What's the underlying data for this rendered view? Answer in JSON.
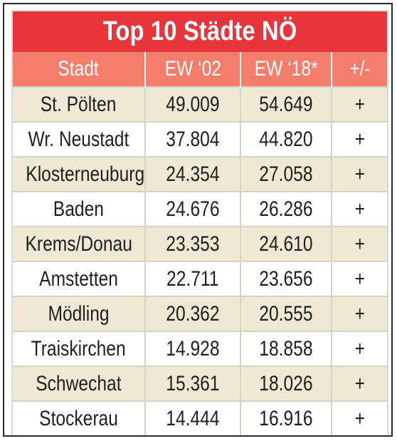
{
  "title": "Top 10 Städte NÖ",
  "columns": [
    "Stadt",
    "EW ‘02",
    "EW ‘18*",
    "+/-"
  ],
  "rows": [
    [
      "St. Pölten",
      "49.009",
      "54.649",
      "+"
    ],
    [
      "Wr. Neustadt",
      "37.804",
      "44.820",
      "+"
    ],
    [
      "Klosterneuburg",
      "24.354",
      "27.058",
      "+"
    ],
    [
      "Baden",
      "24.676",
      "26.286",
      "+"
    ],
    [
      "Krems/Donau",
      "23.353",
      "24.610",
      "+"
    ],
    [
      "Amstetten",
      "22.711",
      "23.656",
      "+"
    ],
    [
      "Mödling",
      "20.362",
      "20.555",
      "+"
    ],
    [
      "Traiskirchen",
      "14.928",
      "18.858",
      "+"
    ],
    [
      "Schwechat",
      "15.361",
      "18.026",
      "+"
    ],
    [
      "Stockerau",
      "14.444",
      "16.916",
      "+"
    ]
  ],
  "colors": {
    "title_background": "#e8343b",
    "header_background": "#f57d6c",
    "row_odd": "#efe8d3",
    "row_even": "#ffffff"
  }
}
